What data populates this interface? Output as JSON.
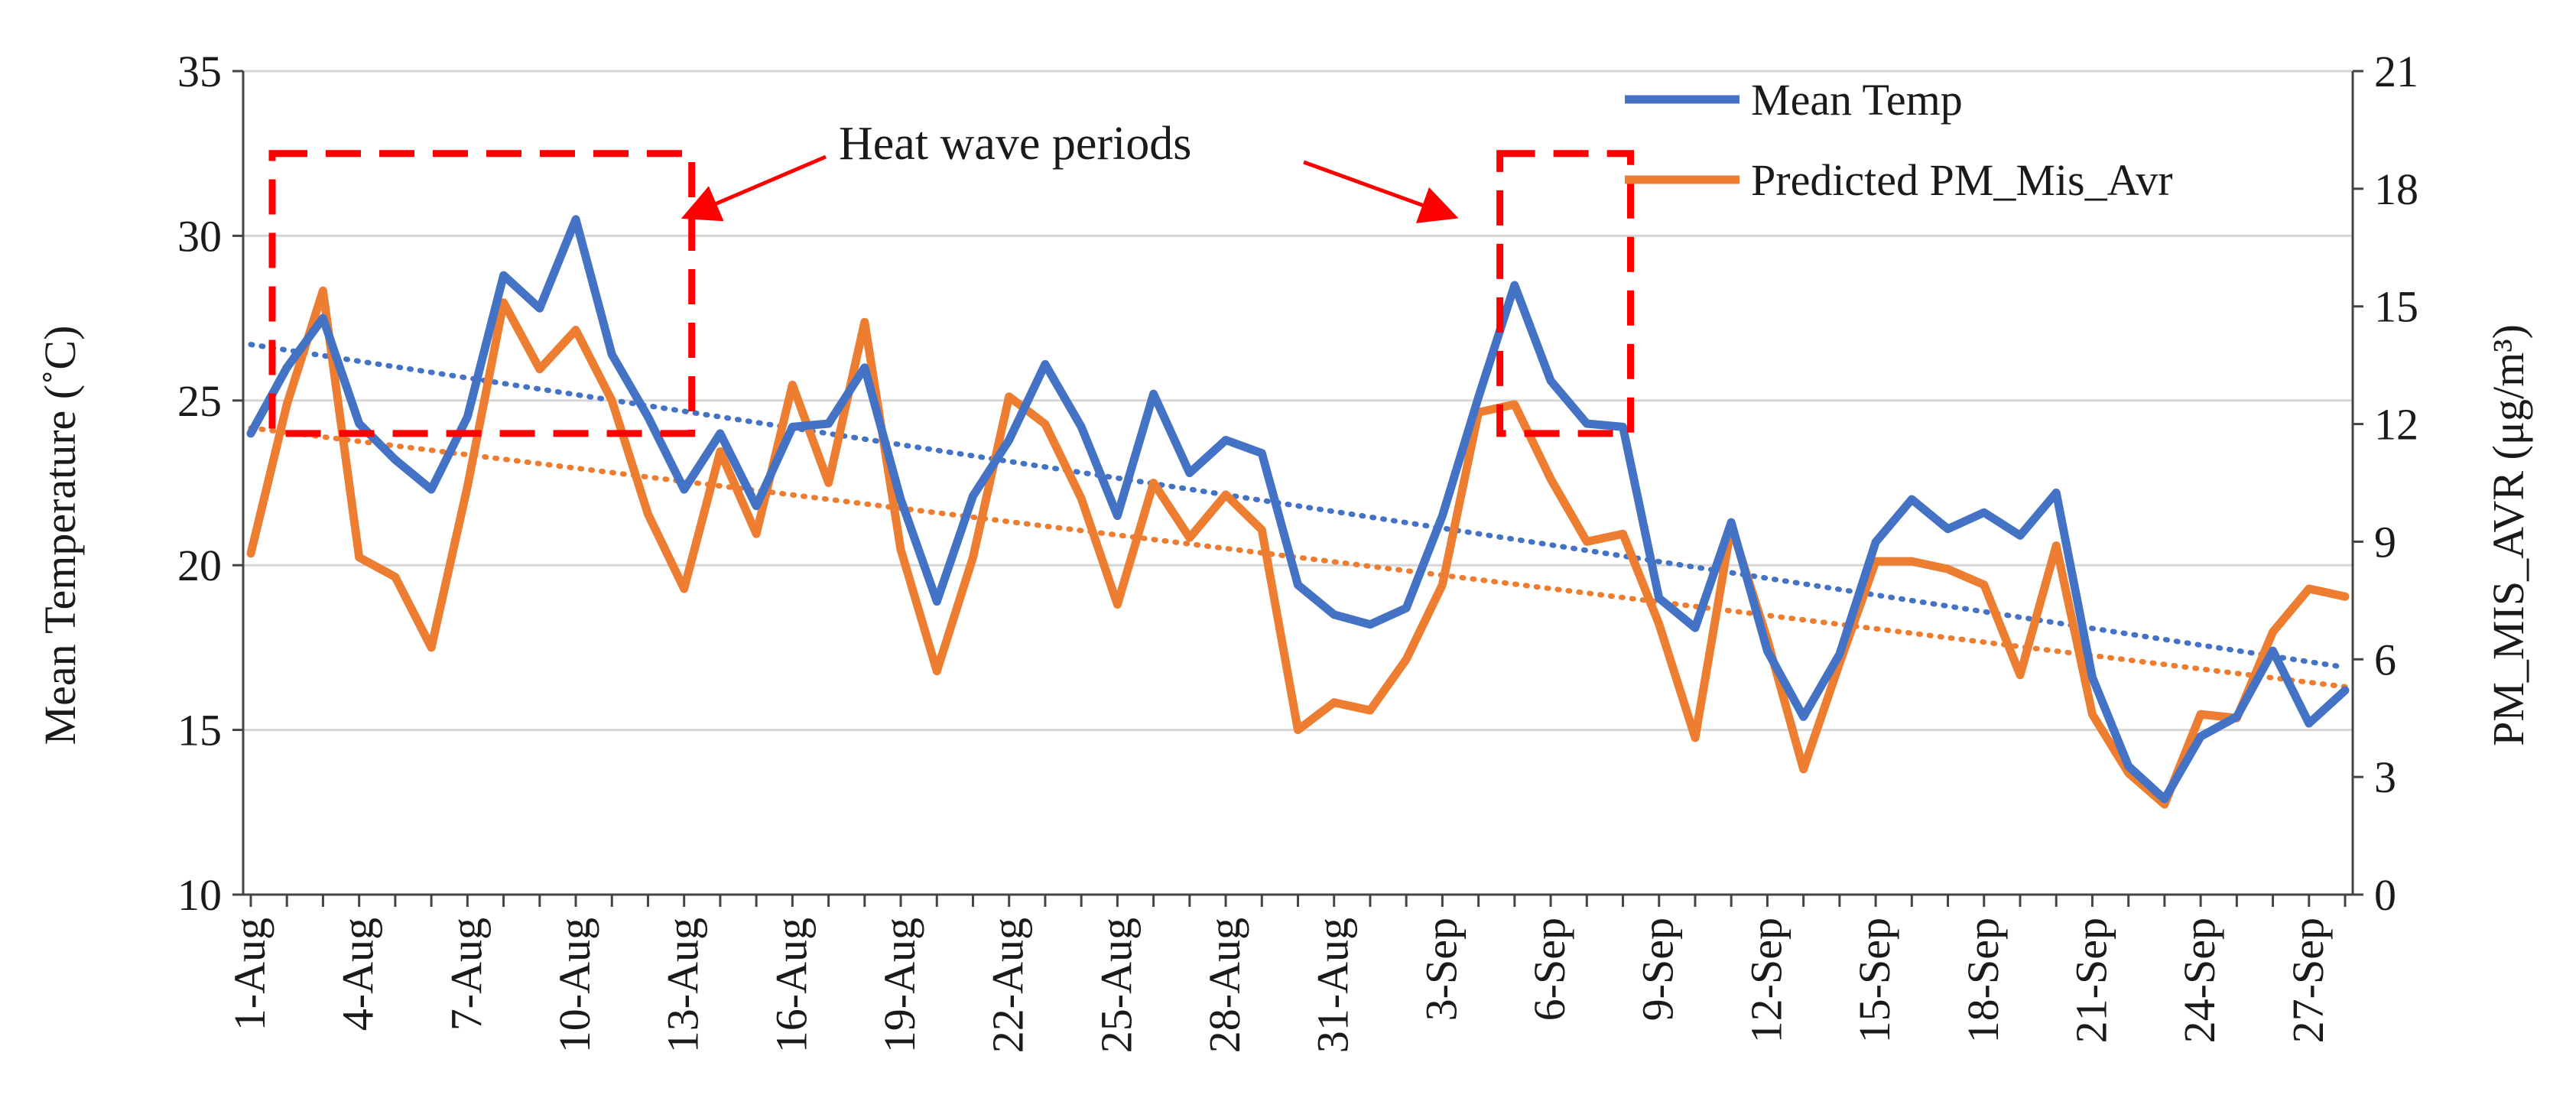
{
  "chart_data": {
    "type": "line",
    "title": "",
    "xlabel": "",
    "ylabel": "Mean Temperature (˚C)",
    "y2label": "PM_MIS_AVR (μg/m³)",
    "ylim": [
      10,
      35
    ],
    "y2lim": [
      0,
      21
    ],
    "yticks": [
      "10",
      "15",
      "20",
      "25",
      "30",
      "35"
    ],
    "y2ticks": [
      "0",
      "3",
      "6",
      "9",
      "12",
      "15",
      "18",
      "21"
    ],
    "grid": "horizontal",
    "legend_position": "top-right",
    "categories": [
      "1-Aug",
      "2-Aug",
      "3-Aug",
      "4-Aug",
      "5-Aug",
      "6-Aug",
      "7-Aug",
      "8-Aug",
      "9-Aug",
      "10-Aug",
      "11-Aug",
      "12-Aug",
      "13-Aug",
      "14-Aug",
      "15-Aug",
      "16-Aug",
      "17-Aug",
      "18-Aug",
      "19-Aug",
      "20-Aug",
      "21-Aug",
      "22-Aug",
      "23-Aug",
      "24-Aug",
      "25-Aug",
      "26-Aug",
      "27-Aug",
      "28-Aug",
      "29-Aug",
      "30-Aug",
      "31-Aug",
      "1-Sep",
      "2-Sep",
      "3-Sep",
      "4-Sep",
      "5-Sep",
      "6-Sep",
      "7-Sep",
      "8-Sep",
      "9-Sep",
      "10-Sep",
      "11-Sep",
      "12-Sep",
      "13-Sep",
      "14-Sep",
      "15-Sep",
      "16-Sep",
      "17-Sep",
      "18-Sep",
      "19-Sep",
      "20-Sep",
      "21-Sep",
      "22-Sep",
      "23-Sep",
      "24-Sep",
      "25-Sep",
      "26-Sep",
      "27-Sep",
      "28-Sep"
    ],
    "tick_labels": [
      "1-Aug",
      "4-Aug",
      "7-Aug",
      "10-Aug",
      "13-Aug",
      "16-Aug",
      "19-Aug",
      "22-Aug",
      "25-Aug",
      "28-Aug",
      "31-Aug",
      "3-Sep",
      "6-Sep",
      "9-Sep",
      "12-Sep",
      "15-Sep",
      "18-Sep",
      "21-Sep",
      "24-Sep",
      "27-Sep"
    ],
    "series": [
      {
        "name": "Mean Temp",
        "axis": "left",
        "color": "#4472C4",
        "values": [
          24.0,
          26.0,
          27.5,
          24.3,
          23.2,
          22.3,
          24.5,
          28.8,
          27.8,
          30.5,
          26.4,
          24.5,
          22.3,
          24.0,
          21.8,
          24.2,
          24.3,
          26.0,
          22.0,
          18.9,
          22.1,
          23.8,
          26.1,
          24.2,
          21.5,
          25.2,
          22.8,
          23.8,
          23.4,
          19.4,
          18.5,
          18.2,
          18.7,
          21.5,
          25.1,
          28.5,
          25.6,
          24.3,
          24.2,
          19.0,
          18.1,
          21.3,
          17.4,
          15.4,
          17.3,
          20.7,
          22.0,
          21.1,
          21.6,
          20.9,
          22.2,
          16.6,
          13.9,
          12.9,
          14.8,
          15.4,
          17.4,
          15.2,
          16.2
        ]
      },
      {
        "name": "Predicted PM_Mis_Avr",
        "axis": "right",
        "color": "#ED7D31",
        "values": [
          8.7,
          12.5,
          15.4,
          8.6,
          8.1,
          6.3,
          10.4,
          15.1,
          13.4,
          14.4,
          12.6,
          9.7,
          7.8,
          11.3,
          9.2,
          13.0,
          10.5,
          14.6,
          8.8,
          5.7,
          8.6,
          12.7,
          12.0,
          10.1,
          7.4,
          10.5,
          9.1,
          10.2,
          9.3,
          4.2,
          4.9,
          4.7,
          6.0,
          7.9,
          12.3,
          12.5,
          10.6,
          9.0,
          9.2,
          6.9,
          4.0,
          9.4,
          6.5,
          3.2,
          5.9,
          8.5,
          8.5,
          8.3,
          7.9,
          5.6,
          8.9,
          4.6,
          3.1,
          2.3,
          4.6,
          4.5,
          6.7,
          7.8,
          7.6
        ]
      }
    ],
    "trendlines": [
      {
        "series": "Mean Temp",
        "axis": "left",
        "color": "#4472C4",
        "start": 26.7,
        "end": 16.9
      },
      {
        "series": "Predicted PM_Mis_Avr",
        "axis": "right",
        "color": "#ED7D31",
        "start": 11.9,
        "end": 5.3
      }
    ],
    "annotations": {
      "text": "Heat wave periods",
      "color": "#FF0000",
      "periods": [
        {
          "from": "1-Aug",
          "to": "13-Aug",
          "y_low": 24.0,
          "y_high": 32.5
        },
        {
          "from": "4-Sep",
          "to": "8-Sep",
          "y_low": 24.0,
          "y_high": 32.5
        }
      ]
    }
  }
}
